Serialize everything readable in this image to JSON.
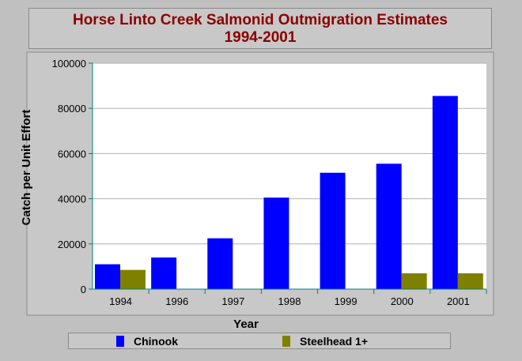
{
  "colors": {
    "chinook": "#0000ff",
    "steelhead": "#808000",
    "title": "#8b0000",
    "axis": "#008080",
    "grid": "#b0b0b0"
  },
  "chart_data": {
    "type": "bar",
    "title": "Horse Linto Creek Salmonid Outmigration Estimates",
    "subtitle": "1994-2001",
    "xlabel": "Year",
    "ylabel": "Catch per Unit Effort",
    "categories": [
      "1994",
      "1996",
      "1997",
      "1998",
      "1999",
      "2000",
      "2001"
    ],
    "series": [
      {
        "name": "Chinook",
        "values": [
          11000,
          14000,
          22500,
          40500,
          51500,
          55500,
          85500
        ]
      },
      {
        "name": "Steelhead 1+",
        "values": [
          8500,
          0,
          0,
          0,
          0,
          7000,
          7000
        ]
      }
    ],
    "ylim": [
      0,
      100000
    ],
    "yticks": [
      "0",
      "20000",
      "40000",
      "60000",
      "80000",
      "100000"
    ],
    "grid": true,
    "legend_position": "bottom"
  }
}
